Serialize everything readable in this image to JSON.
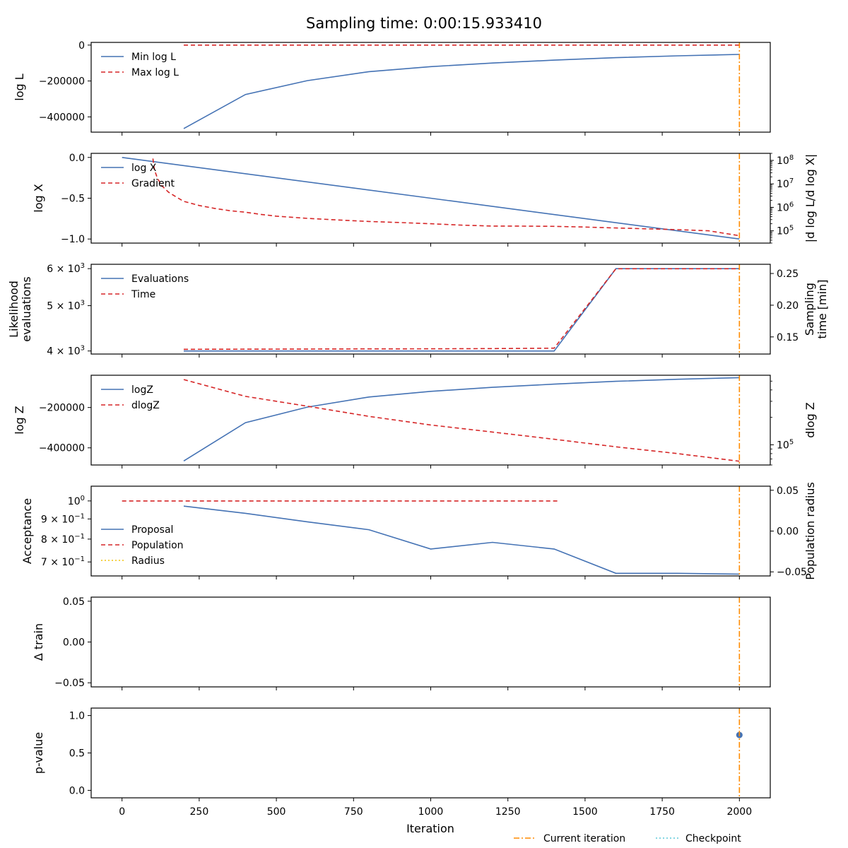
{
  "chart_data": {
    "type": "line",
    "suptitle": "Sampling time: 0:00:15.933410",
    "xlabel": "Iteration",
    "xlim": [
      -100,
      2100
    ],
    "xticks": [
      0,
      250,
      500,
      750,
      1000,
      1250,
      1500,
      1750,
      2000
    ],
    "current_iteration": 2000,
    "figure_legend": [
      {
        "label": "Current iteration",
        "color": "#ff8c00",
        "dash": "8,3,2,3"
      },
      {
        "label": "Checkpoint",
        "color": "#5bc8d8",
        "dash": "2,3"
      }
    ],
    "panels": [
      {
        "id": "logl",
        "ylabel": [
          "log L"
        ],
        "ylim": [
          -485000,
          15000
        ],
        "yticks": [
          {
            "v": 0,
            "t": "0"
          },
          {
            "v": -200000,
            "t": "−200000"
          },
          {
            "v": -400000,
            "t": "−400000"
          }
        ],
        "legend": [
          {
            "label": "Min log L",
            "color": "#4472b4",
            "dash": ""
          },
          {
            "label": "Max log L",
            "color": "#d62728",
            "dash": "6,4"
          }
        ],
        "series": [
          {
            "name": "Min log L",
            "color": "#4472b4",
            "dash": "",
            "axis": "left",
            "x": [
              200,
              400,
              600,
              800,
              1000,
              1200,
              1400,
              1600,
              1800,
              2000
            ],
            "y": [
              -465000,
              -275000,
              -198000,
              -148000,
              -120000,
              -100000,
              -84000,
              -70000,
              -60000,
              -52000
            ]
          },
          {
            "name": "Max log L",
            "color": "#d62728",
            "dash": "6,4",
            "axis": "left",
            "x": [
              200,
              2000
            ],
            "y": [
              0,
              0
            ]
          }
        ]
      },
      {
        "id": "logx",
        "ylabel": [
          "log X"
        ],
        "ylim": [
          -1.05,
          0.05
        ],
        "yticks": [
          {
            "v": 0,
            "t": "0.0"
          },
          {
            "v": -0.5,
            "t": "−0.5"
          },
          {
            "v": -1,
            "t": "−1.0"
          }
        ],
        "right_label": [
          "|d log L/d log X|"
        ],
        "right_log": true,
        "right_ylim": [
          30000,
          200000000
        ],
        "right_ticks": [
          {
            "v": 100000,
            "t": "10",
            "e": "5"
          },
          {
            "v": 1000000,
            "t": "10",
            "e": "6"
          },
          {
            "v": 10000000,
            "t": "10",
            "e": "7"
          },
          {
            "v": 100000000,
            "t": "10",
            "e": "8"
          }
        ],
        "legend": [
          {
            "label": "log X",
            "color": "#4472b4",
            "dash": ""
          },
          {
            "label": "Gradient",
            "color": "#d62728",
            "dash": "6,4"
          }
        ],
        "series": [
          {
            "name": "log X",
            "color": "#4472b4",
            "dash": "",
            "axis": "left",
            "x": [
              0,
              2000
            ],
            "y": [
              0,
              -1
            ]
          },
          {
            "name": "Gradient",
            "color": "#d62728",
            "dash": "6,4",
            "axis": "right",
            "x": [
              100,
              105,
              115,
              130,
              150,
              175,
              200,
              250,
              300,
              350,
              400,
              450,
              500,
              600,
              700,
              800,
              900,
              1000,
              1100,
              1200,
              1300,
              1400,
              1500,
              1600,
              1700,
              1800,
              1900,
              2000
            ],
            "y": [
              120000000,
              40000000,
              17000000,
              8000000,
              4500000,
              2800000,
              1800000,
              1200000,
              900000,
              720000,
              620000,
              500000,
              420000,
              340000,
              290000,
              250000,
              225000,
              200000,
              175000,
              160000,
              158000,
              155000,
              145000,
              132000,
              122000,
              112000,
              100000,
              62000
            ]
          }
        ]
      },
      {
        "id": "evals",
        "ylabel": [
          "Likelihood",
          "evaluations"
        ],
        "ylog": true,
        "ylim": [
          3940,
          6130
        ],
        "yticks": [
          {
            "v": 6000,
            "t": "6 × 10",
            "e": "3"
          },
          {
            "v": 5000,
            "t": "5 × 10",
            "e": "3"
          },
          {
            "v": 4000,
            "t": "4 × 10",
            "e": "3"
          }
        ],
        "right_label": [
          "Sampling",
          "time [min]"
        ],
        "right_ylim": [
          0.123,
          0.2645
        ],
        "right_ticks": [
          {
            "v": 0.15,
            "t": "0.15"
          },
          {
            "v": 0.2,
            "t": "0.20"
          },
          {
            "v": 0.25,
            "t": "0.25"
          }
        ],
        "legend": [
          {
            "label": "Evaluations",
            "color": "#4472b4",
            "dash": ""
          },
          {
            "label": "Time",
            "color": "#d62728",
            "dash": "6,4"
          }
        ],
        "series": [
          {
            "name": "Evaluations",
            "color": "#4472b4",
            "dash": "",
            "axis": "left",
            "x": [
              200,
              400,
              600,
              800,
              1000,
              1200,
              1400,
              1600,
              1800,
              2000
            ],
            "y": [
              4000,
              4000,
              4000,
              4000,
              4000,
              4000,
              4000,
              6000,
              6000,
              6000
            ]
          },
          {
            "name": "Time",
            "color": "#d62728",
            "dash": "6,4",
            "axis": "right",
            "x": [
              200,
              400,
              600,
              800,
              1000,
              1200,
              1400,
              1600,
              1800,
              2000
            ],
            "y": [
              0.1305,
              0.1307,
              0.1309,
              0.1311,
              0.1313,
              0.1316,
              0.1322,
              0.2575,
              0.2575,
              0.2575
            ]
          }
        ]
      },
      {
        "id": "logz",
        "ylabel": [
          "log Z"
        ],
        "ylim": [
          -485000,
          -40000
        ],
        "yticks": [
          {
            "v": -200000,
            "t": "−200000"
          },
          {
            "v": -400000,
            "t": "−400000"
          }
        ],
        "right_label": [
          "dlog Z"
        ],
        "right_log": true,
        "right_ylim": [
          60000,
          580000
        ],
        "right_ticks": [
          {
            "v": 100000,
            "t": "10",
            "e": "5"
          }
        ],
        "legend": [
          {
            "label": "logZ",
            "color": "#4472b4",
            "dash": ""
          },
          {
            "label": "dlogZ",
            "color": "#d62728",
            "dash": "6,4"
          }
        ],
        "series": [
          {
            "name": "logZ",
            "color": "#4472b4",
            "dash": "",
            "axis": "left",
            "x": [
              200,
              400,
              600,
              800,
              1000,
              1200,
              1400,
              1600,
              1800,
              2000
            ],
            "y": [
              -465000,
              -275000,
              -198000,
              -148000,
              -120000,
              -100000,
              -84000,
              -70000,
              -60000,
              -52000
            ]
          },
          {
            "name": "dlogZ",
            "color": "#d62728",
            "dash": "6,4",
            "axis": "right",
            "x": [
              200,
              400,
              600,
              800,
              1000,
              1200,
              1400,
              1600,
              1800,
              2000
            ],
            "y": [
              520000,
              340000,
              265000,
              205000,
              165000,
              138000,
              115000,
              95000,
              80000,
              66000
            ]
          }
        ]
      },
      {
        "id": "acceptance",
        "ylabel": [
          "Acceptance"
        ],
        "ylog": true,
        "ylim": [
          0.645,
          1.09
        ],
        "yticks": [
          {
            "v": 1,
            "t": "10",
            "e": "0"
          },
          {
            "v": 0.9,
            "t": "9 × 10",
            "e": "−1"
          },
          {
            "v": 0.8,
            "t": "8 × 10",
            "e": "−1"
          },
          {
            "v": 0.7,
            "t": "7 × 10",
            "e": "−1"
          }
        ],
        "right_label": [
          "Population radius"
        ],
        "right_ylim": [
          -0.055,
          0.055
        ],
        "right_ticks": [
          {
            "v": 0.05,
            "t": "0.05"
          },
          {
            "v": 0,
            "t": "0.00"
          },
          {
            "v": -0.05,
            "t": "−0.05"
          }
        ],
        "legend": [
          {
            "label": "Proposal",
            "color": "#4472b4",
            "dash": ""
          },
          {
            "label": "Population",
            "color": "#d62728",
            "dash": "6,4"
          },
          {
            "label": "Radius",
            "color": "#f2c40f",
            "dash": "2,3"
          }
        ],
        "series": [
          {
            "name": "Proposal",
            "color": "#4472b4",
            "dash": "",
            "axis": "left",
            "x": [
              200,
              400,
              600,
              800,
              1000,
              1200,
              1400,
              1600,
              1800,
              2000
            ],
            "y": [
              0.97,
              0.93,
              0.885,
              0.845,
              0.755,
              0.785,
              0.755,
              0.655,
              0.655,
              0.652
            ]
          },
          {
            "name": "Population",
            "color": "#d62728",
            "dash": "6,4",
            "axis": "left",
            "x": [
              0,
              1410
            ],
            "y": [
              1.0,
              1.0
            ]
          }
        ]
      },
      {
        "id": "dtrain",
        "ylabel": [
          "Δ train"
        ],
        "ylim": [
          -0.055,
          0.055
        ],
        "yticks": [
          {
            "v": 0.05,
            "t": "0.05"
          },
          {
            "v": 0,
            "t": "0.00"
          },
          {
            "v": -0.05,
            "t": "−0.05"
          }
        ],
        "legend": [],
        "series": []
      },
      {
        "id": "pvalue",
        "ylabel": [
          "p-value"
        ],
        "ylim": [
          -0.1,
          1.1
        ],
        "yticks": [
          {
            "v": 1,
            "t": "1.0"
          },
          {
            "v": 0.5,
            "t": "0.5"
          },
          {
            "v": 0,
            "t": "0.0"
          }
        ],
        "legend": [],
        "series": [],
        "points": [
          {
            "x": 2000,
            "y": 0.74,
            "color": "#4472b4"
          }
        ]
      }
    ]
  }
}
